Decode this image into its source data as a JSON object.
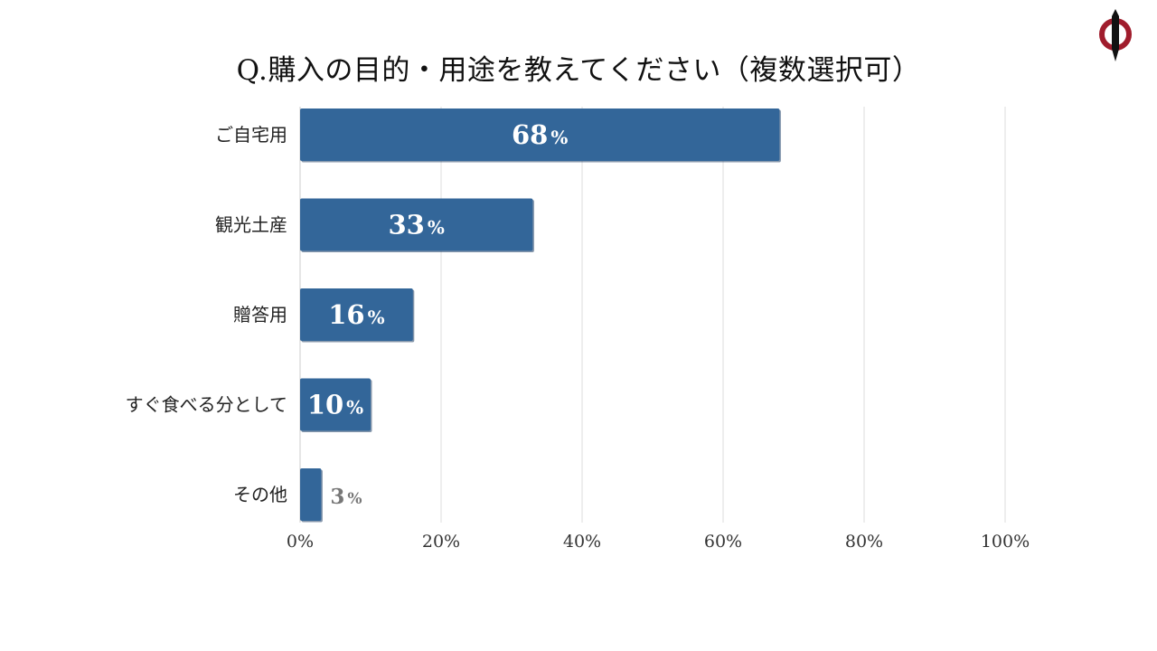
{
  "chart_data": {
    "type": "bar",
    "orientation": "horizontal",
    "title": "Q.購入の目的・用途を教えてください（複数選択可）",
    "categories": [
      "ご自宅用",
      "観光土産",
      "贈答用",
      "すぐ食べる分として",
      "その他"
    ],
    "values": [
      68,
      33,
      16,
      10,
      3
    ],
    "value_labels": [
      "68",
      "33",
      "16",
      "10",
      "3"
    ],
    "value_suffix": "%",
    "xlim": [
      0,
      100
    ],
    "x_ticks": [
      0,
      20,
      40,
      60,
      80,
      100
    ],
    "x_tick_labels": [
      "0%",
      "20%",
      "40%",
      "60%",
      "80%",
      "100%"
    ],
    "grid": true,
    "legend": "none",
    "colors": {
      "bar": "#336699",
      "bar_shadow": "#1f3f66",
      "label_inside": "#ffffff",
      "label_outside": "#777777",
      "grid": "#dddddd",
      "logo_red": "#a01c2c"
    }
  },
  "logo": {
    "icon": "circle-pen-logo"
  }
}
